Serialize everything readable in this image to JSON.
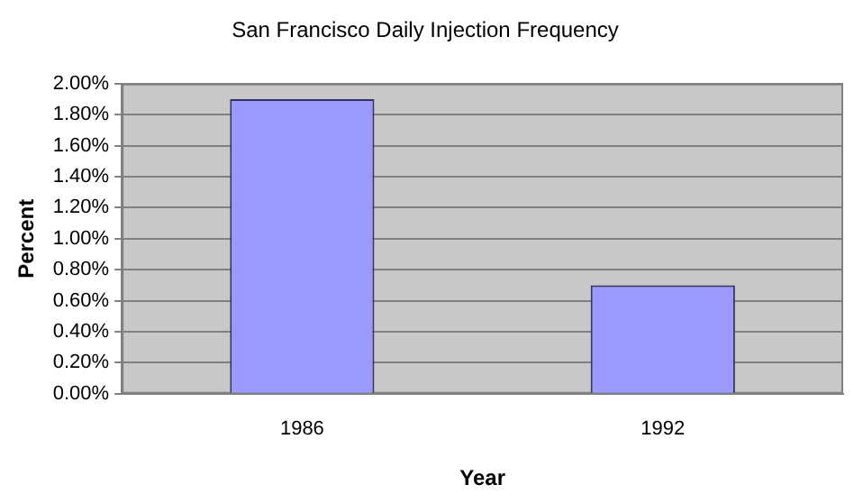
{
  "chart_data": {
    "type": "bar",
    "title": "San Francisco Daily Injection Frequency",
    "xlabel": "Year",
    "ylabel": "Percent",
    "categories": [
      "1986",
      "1992"
    ],
    "values": [
      1.9,
      0.7
    ],
    "color": "#9999ff",
    "ylim": [
      0,
      2
    ],
    "yticks": [
      {
        "value": 0,
        "label": "0.00%"
      },
      {
        "value": 0.2,
        "label": "0.20%"
      },
      {
        "value": 0.4,
        "label": "0.40%"
      },
      {
        "value": 0.6,
        "label": "0.60%"
      },
      {
        "value": 0.8,
        "label": "0.80%"
      },
      {
        "value": 1,
        "label": "1.00%"
      },
      {
        "value": 1.2,
        "label": "1.20%"
      },
      {
        "value": 1.4,
        "label": "1.40%"
      },
      {
        "value": 1.6,
        "label": "1.60%"
      },
      {
        "value": 1.8,
        "label": "1.80%"
      },
      {
        "value": 2,
        "label": "2.00%"
      }
    ],
    "grid": "y",
    "legend": false
  }
}
